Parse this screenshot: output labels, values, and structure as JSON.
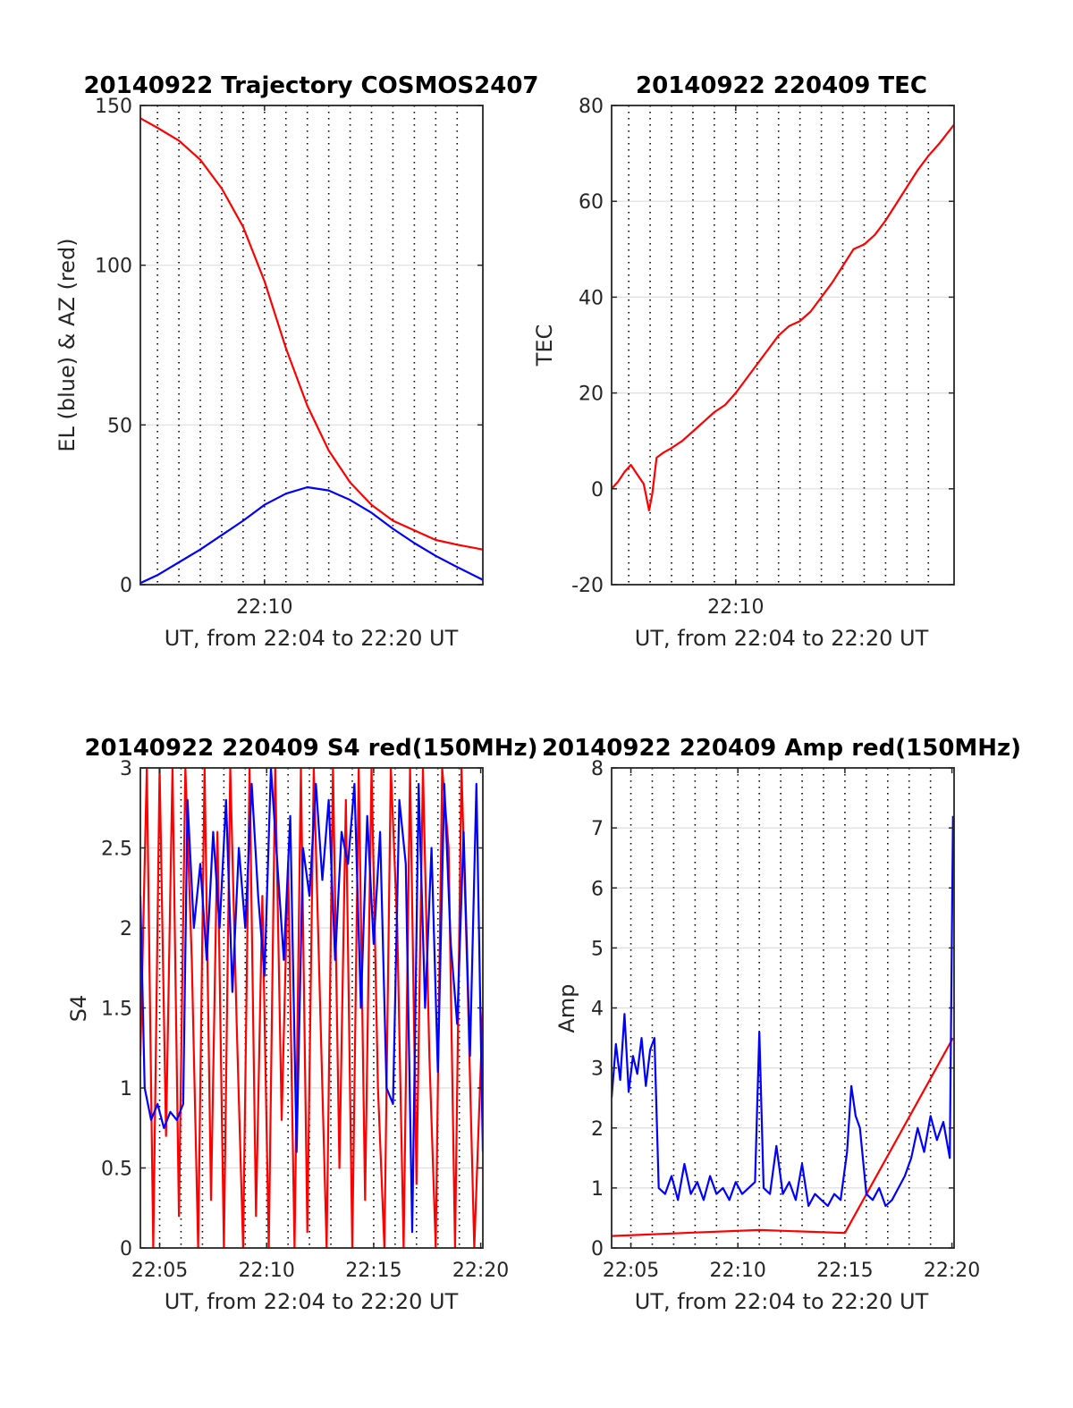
{
  "colors": {
    "red": "#ff0000",
    "blue": "#0000ff",
    "axis": "#262626",
    "grid_major": "#dedede",
    "grid_dotted": "#000000"
  },
  "chart_data": [
    {
      "type": "line",
      "title": "20140922 Trajectory COSMOS2407",
      "xlabel": "UT, from 22:04 to 22:20 UT",
      "ylabel": "EL (blue) & AZ (red)",
      "xlim_min": [
        4.2,
        20.2
      ],
      "ylim": [
        0,
        150
      ],
      "yticks": [
        0,
        50,
        100,
        150
      ],
      "ytick_labels": [
        "0",
        "50",
        "100",
        "150"
      ],
      "xticks_min": [
        10
      ],
      "xtick_labels": [
        "22:10"
      ],
      "dotted_vgrid_min": [
        5,
        6,
        7,
        8,
        9,
        10,
        11,
        12,
        13,
        14,
        15,
        16,
        17,
        18,
        19
      ],
      "hgrid": true,
      "series": [
        {
          "color": "red",
          "x_min": [
            4.2,
            5,
            6,
            7,
            8,
            9,
            10,
            11,
            12,
            13,
            14,
            15,
            16,
            17,
            18,
            19,
            20.2
          ],
          "values": [
            146,
            143,
            139,
            133,
            124,
            112,
            95,
            74,
            56,
            42,
            32,
            25,
            20,
            17,
            14,
            12.5,
            11
          ]
        },
        {
          "color": "blue",
          "x_min": [
            4.2,
            5,
            6,
            7,
            8,
            9,
            10,
            11,
            12,
            13,
            14,
            15,
            16,
            17,
            18,
            19,
            20.2
          ],
          "values": [
            0.5,
            3,
            7,
            11,
            15.5,
            20,
            25,
            28.5,
            30.5,
            29.5,
            26.5,
            22.5,
            17.5,
            13,
            9,
            5.5,
            1.5
          ]
        }
      ]
    },
    {
      "type": "line",
      "title": "20140922 220409 TEC",
      "xlabel": "UT, from 22:04 to 22:20 UT",
      "ylabel": "TEC",
      "xlim_min": [
        4.2,
        20.2
      ],
      "ylim": [
        -20,
        80
      ],
      "yticks": [
        -20,
        0,
        20,
        40,
        60,
        80
      ],
      "ytick_labels": [
        "-20",
        "0",
        "20",
        "40",
        "60",
        "80"
      ],
      "xticks_min": [
        10
      ],
      "xtick_labels": [
        "22:10"
      ],
      "dotted_vgrid_min": [
        5,
        6,
        7,
        8,
        9,
        10,
        11,
        12,
        13,
        14,
        15,
        16,
        17,
        18,
        19
      ],
      "hgrid": true,
      "series": [
        {
          "color": "red",
          "x_min": [
            4.2,
            4.5,
            4.8,
            5.1,
            5.4,
            5.7,
            5.95,
            6.1,
            6.3,
            6.6,
            7,
            7.5,
            8,
            8.5,
            9,
            9.5,
            10,
            10.5,
            11,
            11.5,
            12,
            12.5,
            13,
            13.5,
            14,
            14.5,
            15,
            15.5,
            16,
            16.5,
            17,
            17.5,
            18,
            18.5,
            19,
            19.5,
            20.2
          ],
          "values": [
            0,
            1.5,
            3.5,
            5,
            3,
            1,
            -4.5,
            -1,
            6.5,
            7.5,
            8.5,
            10,
            12,
            14,
            16,
            17.5,
            20,
            23,
            26,
            29,
            32,
            34,
            35,
            37,
            40,
            43,
            46.5,
            50,
            51,
            53,
            56,
            59.5,
            63,
            66.5,
            69.5,
            72,
            76
          ]
        }
      ]
    },
    {
      "type": "line",
      "title": "20140922 220409 S4 red(150MHz)",
      "xlabel": "UT, from 22:04 to 22:20 UT",
      "ylabel": "S4",
      "xlim_min": [
        4.1,
        20.1
      ],
      "ylim": [
        0,
        3
      ],
      "yticks": [
        0,
        0.5,
        1,
        1.5,
        2,
        2.5,
        3
      ],
      "ytick_labels": [
        "0",
        "0.5",
        "1",
        "1.5",
        "2",
        "2.5",
        "3"
      ],
      "xticks_min": [
        5,
        10,
        15,
        20
      ],
      "xtick_labels": [
        "22:05",
        "22:10",
        "22:15",
        "22:20"
      ],
      "dotted_vgrid_min": [
        5,
        6,
        7,
        8,
        9,
        10,
        11,
        12,
        13,
        14,
        15,
        16,
        17,
        18,
        19
      ],
      "hgrid": true,
      "series": [
        {
          "color": "red",
          "x_min": [
            4.1,
            4.4,
            4.7,
            5,
            5.3,
            5.6,
            5.9,
            6.2,
            6.5,
            6.8,
            7.1,
            7.4,
            7.7,
            8,
            8.3,
            8.6,
            8.9,
            9.2,
            9.5,
            9.8,
            10.1,
            10.4,
            10.7,
            11,
            11.3,
            11.6,
            11.9,
            12.2,
            12.5,
            12.8,
            13.1,
            13.4,
            13.7,
            14,
            14.3,
            14.6,
            14.9,
            15.2,
            15.5,
            15.8,
            16.1,
            16.4,
            16.7,
            17,
            17.3,
            17.6,
            17.9,
            18.2,
            18.5,
            18.8,
            19.1,
            19.4,
            19.7,
            20.1
          ],
          "values": [
            1.2,
            3,
            0,
            3,
            0.7,
            3,
            0.2,
            3,
            1.8,
            0,
            3,
            0.3,
            2.6,
            0,
            3,
            1.4,
            0,
            3,
            0.2,
            2.2,
            0,
            3,
            0.8,
            2.4,
            0,
            3,
            0.1,
            3,
            1.5,
            0,
            3,
            0.5,
            2.8,
            0,
            3,
            0.3,
            3,
            1,
            0,
            3,
            2,
            0,
            3,
            0.4,
            3,
            1.2,
            0,
            3,
            2.5,
            0,
            3,
            1.6,
            0,
            1.5
          ]
        },
        {
          "color": "blue",
          "x_min": [
            4.1,
            4.3,
            4.6,
            4.9,
            5.2,
            5.5,
            5.8,
            6.1,
            6.3,
            6.6,
            6.9,
            7.2,
            7.5,
            7.8,
            8.1,
            8.4,
            8.7,
            9,
            9.3,
            9.6,
            9.9,
            10.2,
            10.5,
            10.8,
            11.1,
            11.4,
            11.7,
            12,
            12.3,
            12.6,
            12.9,
            13.2,
            13.5,
            13.8,
            14.1,
            14.4,
            14.7,
            15,
            15.3,
            15.6,
            15.9,
            16.2,
            16.5,
            16.8,
            17.1,
            17.4,
            17.7,
            18,
            18.3,
            18.6,
            18.9,
            19.2,
            19.5,
            19.8,
            20.1
          ],
          "values": [
            2.2,
            1,
            0.8,
            0.9,
            0.75,
            0.85,
            0.8,
            0.9,
            2.8,
            2,
            2.4,
            1.8,
            2.6,
            2,
            2.8,
            1.6,
            2.5,
            2,
            2.9,
            2.2,
            1.7,
            3,
            2.4,
            1.8,
            2.7,
            0.6,
            2.5,
            2.2,
            2.9,
            2.3,
            2.8,
            1.8,
            2.6,
            2.4,
            2.9,
            1.5,
            2.7,
            1.9,
            2.6,
            1,
            0.9,
            2.8,
            2.4,
            0.1,
            2.9,
            1.5,
            2.5,
            1.1,
            2.9,
            1.9,
            1.4,
            2.6,
            1.2,
            2.9,
            0.6
          ]
        }
      ]
    },
    {
      "type": "line",
      "title": "20140922 220409 Amp red(150MHz)",
      "xlabel": "UT, from 22:04 to 22:20 UT",
      "ylabel": "Amp",
      "xlim_min": [
        4.1,
        20.1
      ],
      "ylim": [
        0,
        8
      ],
      "yticks": [
        0,
        1,
        2,
        3,
        4,
        5,
        6,
        7,
        8
      ],
      "ytick_labels": [
        "0",
        "1",
        "2",
        "3",
        "4",
        "5",
        "6",
        "7",
        "8"
      ],
      "xticks_min": [
        5,
        10,
        15,
        20
      ],
      "xtick_labels": [
        "22:05",
        "22:10",
        "22:15",
        "22:20"
      ],
      "dotted_vgrid_min": [
        5,
        6,
        7,
        8,
        9,
        10,
        11,
        12,
        13,
        14,
        15,
        16,
        17,
        18,
        19
      ],
      "hgrid": true,
      "series": [
        {
          "color": "red",
          "x_min": [
            4.1,
            7.5,
            11,
            15,
            20.05
          ],
          "values": [
            0.2,
            0.25,
            0.3,
            0.25,
            3.5
          ]
        },
        {
          "color": "blue",
          "x_min": [
            4.1,
            4.3,
            4.5,
            4.7,
            4.9,
            5.1,
            5.3,
            5.5,
            5.7,
            5.9,
            6.1,
            6.3,
            6.6,
            6.9,
            7.2,
            7.5,
            7.8,
            8.1,
            8.4,
            8.7,
            9,
            9.3,
            9.6,
            9.9,
            10.2,
            10.5,
            10.8,
            11,
            11.2,
            11.5,
            11.8,
            12.1,
            12.4,
            12.7,
            13,
            13.3,
            13.6,
            13.9,
            14.2,
            14.5,
            14.8,
            15.1,
            15.3,
            15.5,
            15.7,
            16,
            16.3,
            16.6,
            16.9,
            17.2,
            17.5,
            17.8,
            18.1,
            18.4,
            18.7,
            19,
            19.3,
            19.6,
            19.9,
            20.05
          ],
          "values": [
            2.5,
            3.4,
            2.8,
            3.9,
            2.6,
            3.2,
            2.9,
            3.5,
            2.7,
            3.3,
            3.5,
            1,
            0.9,
            1.2,
            0.8,
            1.4,
            0.9,
            1.1,
            0.8,
            1.2,
            0.9,
            1,
            0.8,
            1.1,
            0.9,
            1,
            1.1,
            3.6,
            1,
            0.9,
            1.7,
            0.9,
            1.1,
            0.8,
            1.4,
            0.7,
            0.9,
            0.8,
            0.7,
            0.9,
            0.8,
            1.6,
            2.7,
            2.2,
            2,
            0.9,
            0.8,
            1,
            0.7,
            0.8,
            1,
            1.2,
            1.5,
            2,
            1.6,
            2.2,
            1.8,
            2.1,
            1.5,
            7.2
          ]
        }
      ]
    }
  ]
}
